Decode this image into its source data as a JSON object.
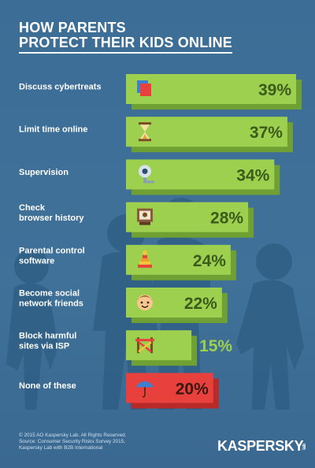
{
  "title": {
    "line1": "HOW PARENTS",
    "line2": "PROTECT THEIR KIDS ONLINE"
  },
  "chart_data": {
    "type": "bar",
    "orientation": "horizontal",
    "categories": [
      "Discuss cybertreats",
      "Limit time online",
      "Supervision",
      "Check\nbrowser history",
      "Parental control\nsoftware",
      "Become social\nnetwork friends",
      "Block harmful\nsites via ISP",
      "None of these"
    ],
    "values": [
      39,
      37,
      34,
      28,
      24,
      22,
      15,
      20
    ],
    "value_labels": [
      "39%",
      "37%",
      "34%",
      "28%",
      "24%",
      "22%",
      "15%",
      "20%"
    ],
    "icons": [
      "books-icon",
      "hourglass-icon",
      "webcam-icon",
      "monitor-icon",
      "toy-pyramid-icon",
      "smiley-face-icon",
      "barrier-icon",
      "umbrella-icon"
    ],
    "bar_colors": [
      "#9ed04f",
      "#9ed04f",
      "#9ed04f",
      "#9ed04f",
      "#9ed04f",
      "#9ed04f",
      "#9ed04f",
      "#e8403d"
    ],
    "shadow_colors": [
      "#6fa033",
      "#6fa033",
      "#6fa033",
      "#6fa033",
      "#6fa033",
      "#6fa033",
      "#6fa033",
      "#b82a28"
    ],
    "value_text_colors": [
      "#3b5a1c",
      "#3b5a1c",
      "#3b5a1c",
      "#3b5a1c",
      "#3b5a1c",
      "#3b5a1c",
      "#9ed04f",
      "#3d1712"
    ],
    "xlim": [
      0,
      39
    ]
  },
  "footer": {
    "line1": "© 2015 AO Kaspersky Lab. All Rights Reserved.",
    "line2": "Source: Consumer Security Risks Survey 2015,",
    "line3": "Kaspersky Lab with B2B International"
  },
  "logo": {
    "name": "KASPERSKY",
    "suffix": "lab"
  }
}
